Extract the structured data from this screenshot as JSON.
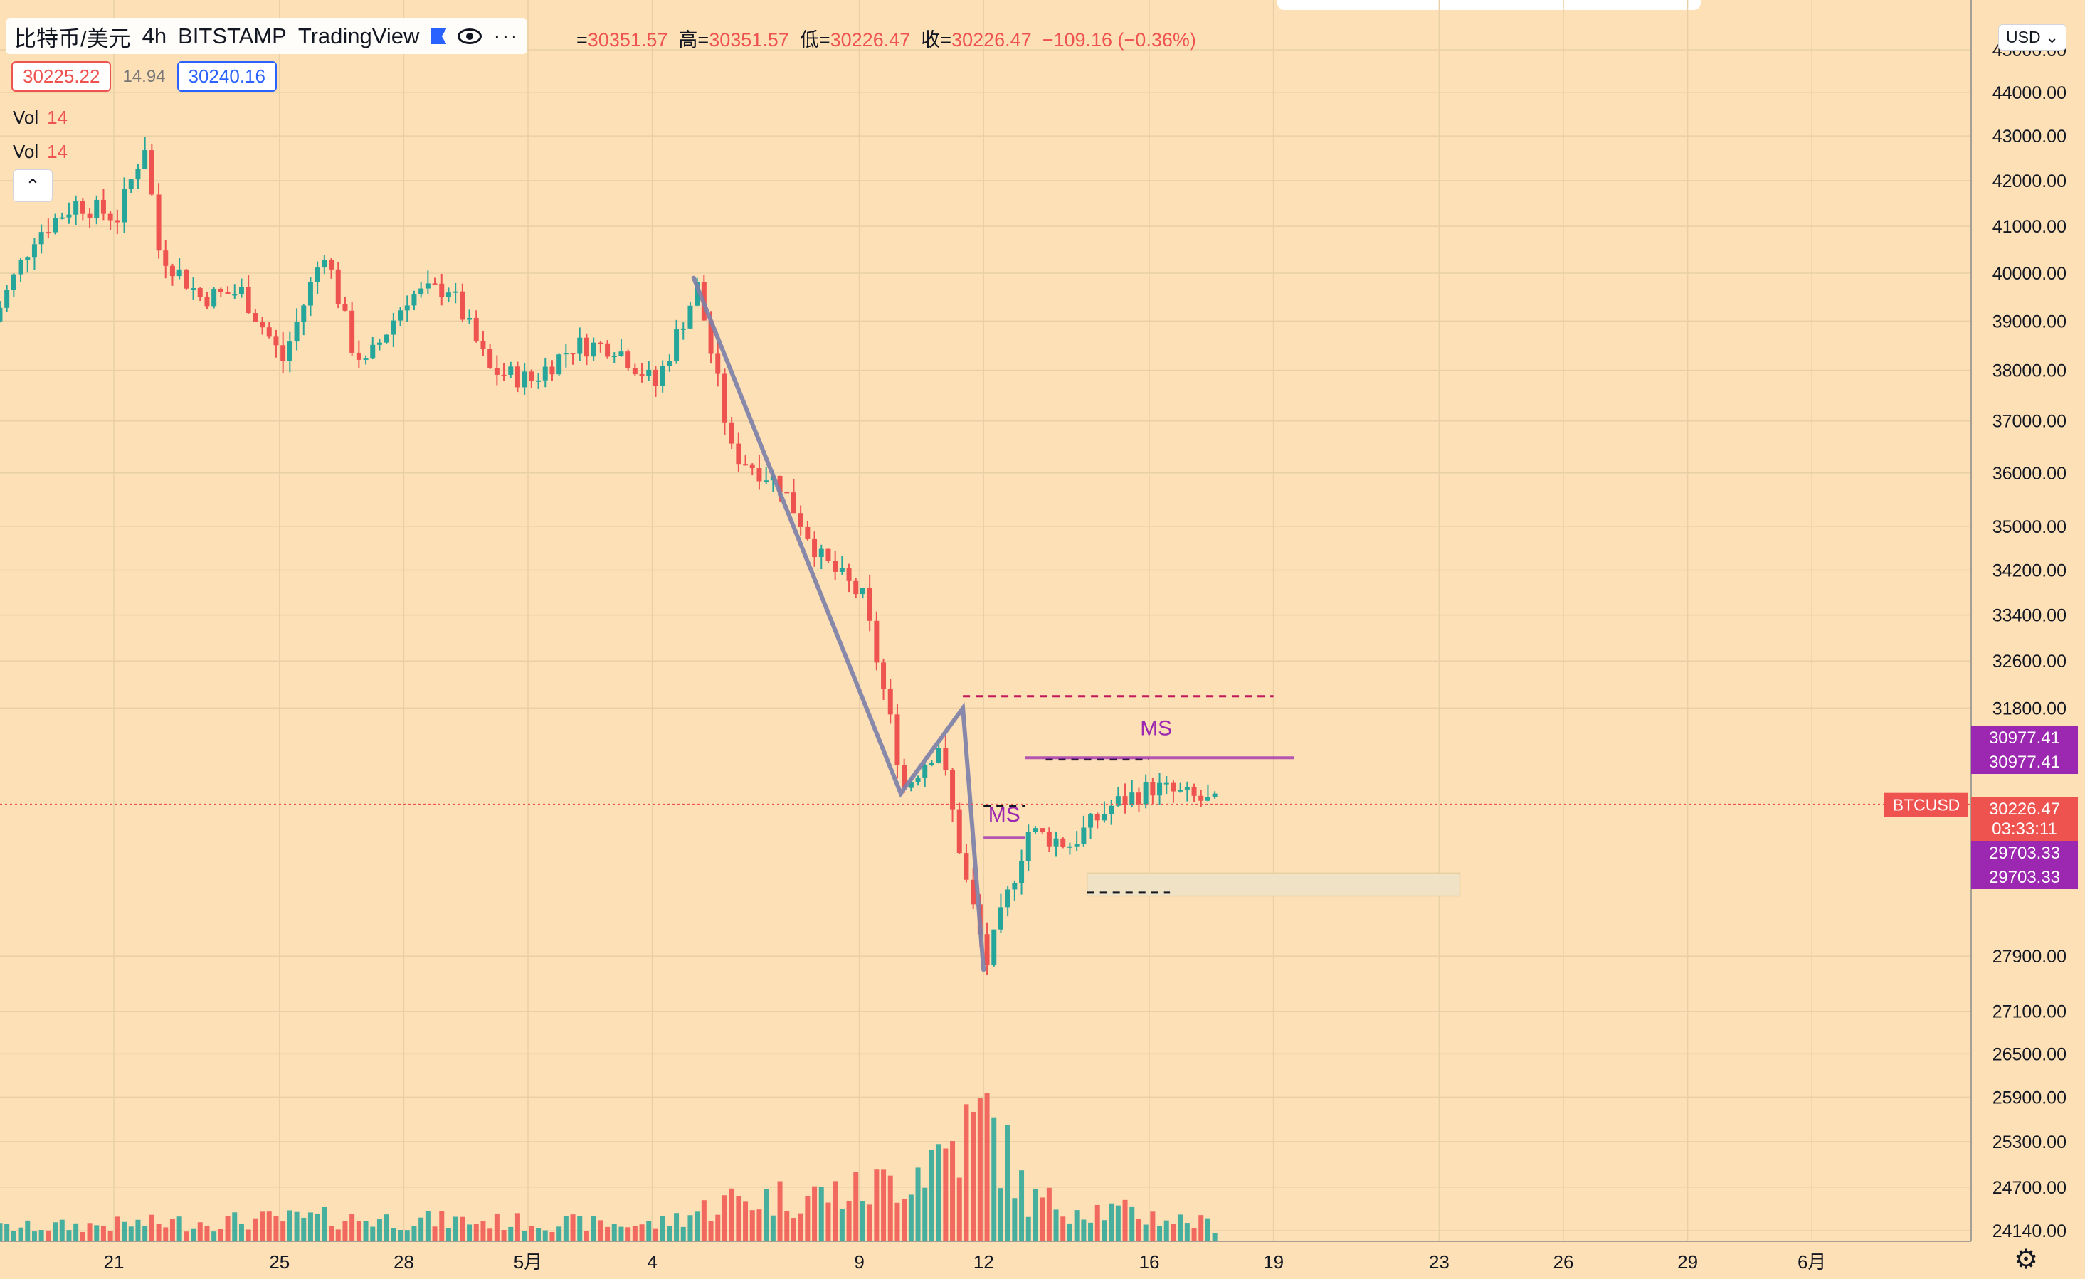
{
  "header": {
    "symbol": "比特币/美元",
    "interval": "4h",
    "exchange": "BITSTAMP",
    "source": "TradingView",
    "icons": [
      "flag-icon",
      "eye-icon",
      "more-icon"
    ]
  },
  "ohlc": {
    "open_label": "=",
    "open": "30351.57",
    "high_label": "高=",
    "high": "30351.57",
    "low_label": "低=",
    "low": "30226.47",
    "close_label": "收=",
    "close": "30226.47",
    "change": "−109.16 (−0.36%)"
  },
  "prices": {
    "bid": "30225.22",
    "spread": "14.94",
    "ask": "30240.16"
  },
  "volume_rows": [
    {
      "label": "Vol",
      "value": "14"
    },
    {
      "label": "Vol",
      "value": "14"
    }
  ],
  "currency_button": "USD",
  "colors": {
    "background": "#fde0b5",
    "up": "#26a69a",
    "down": "#ef5350",
    "accent": "#9c27b0",
    "trend": "#7b7fa8"
  },
  "chart_data": {
    "type": "candlestick",
    "symbol_label": "BTCUSD",
    "y_ticks": [
      "45000.00",
      "44000.00",
      "43000.00",
      "42000.00",
      "41000.00",
      "40000.00",
      "39000.00",
      "38000.00",
      "37000.00",
      "36000.00",
      "35000.00",
      "34200.00",
      "33400.00",
      "32600.00",
      "31800.00",
      "27900.00",
      "27100.00",
      "26500.00",
      "25900.00",
      "25300.00",
      "24700.00",
      "24140.00"
    ],
    "x_ticks": [
      {
        "label": "21",
        "date": "2022-04-21"
      },
      {
        "label": "25",
        "date": "2022-04-25"
      },
      {
        "label": "28",
        "date": "2022-04-28"
      },
      {
        "label": "5月",
        "date": "2022-05-01"
      },
      {
        "label": "4",
        "date": "2022-05-04"
      },
      {
        "label": "9",
        "date": "2022-05-09"
      },
      {
        "label": "12",
        "date": "2022-05-12"
      },
      {
        "label": "16",
        "date": "2022-05-16"
      },
      {
        "label": "19",
        "date": "2022-05-19"
      },
      {
        "label": "23",
        "date": "2022-05-23"
      },
      {
        "label": "26",
        "date": "2022-05-26"
      },
      {
        "label": "29",
        "date": "2022-05-29"
      },
      {
        "label": "6月",
        "date": "2022-06-01"
      }
    ],
    "anchors": [
      {
        "t": "2022-04-18T00:00",
        "p": 39000
      },
      {
        "t": "2022-04-19T00:00",
        "p": 40800
      },
      {
        "t": "2022-04-20T00:00",
        "p": 41500
      },
      {
        "t": "2022-04-21T00:00",
        "p": 41200
      },
      {
        "t": "2022-04-21T16:00",
        "p": 42800
      },
      {
        "t": "2022-04-22T00:00",
        "p": 40500
      },
      {
        "t": "2022-04-23T00:00",
        "p": 39500
      },
      {
        "t": "2022-04-24T00:00",
        "p": 39600
      },
      {
        "t": "2022-04-25T00:00",
        "p": 38200
      },
      {
        "t": "2022-04-26T00:00",
        "p": 40500
      },
      {
        "t": "2022-04-26T16:00",
        "p": 38500
      },
      {
        "t": "2022-04-27T00:00",
        "p": 38100
      },
      {
        "t": "2022-04-28T00:00",
        "p": 39500
      },
      {
        "t": "2022-04-29T00:00",
        "p": 39700
      },
      {
        "t": "2022-04-30T00:00",
        "p": 38000
      },
      {
        "t": "2022-05-01T00:00",
        "p": 37800
      },
      {
        "t": "2022-05-02T00:00",
        "p": 38500
      },
      {
        "t": "2022-05-03T00:00",
        "p": 38500
      },
      {
        "t": "2022-05-04T00:00",
        "p": 37700
      },
      {
        "t": "2022-05-05T00:00",
        "p": 39700
      },
      {
        "t": "2022-05-05T20:00",
        "p": 36400
      },
      {
        "t": "2022-05-07T00:00",
        "p": 35800
      },
      {
        "t": "2022-05-08T00:00",
        "p": 34400
      },
      {
        "t": "2022-05-09T00:00",
        "p": 33700
      },
      {
        "t": "2022-05-10T00:00",
        "p": 30500
      },
      {
        "t": "2022-05-10T20:00",
        "p": 31200
      },
      {
        "t": "2022-05-11T12:00",
        "p": 29000
      },
      {
        "t": "2022-05-12T00:00",
        "p": 27800
      },
      {
        "t": "2022-05-13T00:00",
        "p": 29800
      },
      {
        "t": "2022-05-14T00:00",
        "p": 29600
      },
      {
        "t": "2022-05-15T00:00",
        "p": 30200
      },
      {
        "t": "2022-05-16T00:00",
        "p": 30500
      },
      {
        "t": "2022-05-17T12:00",
        "p": 30226
      }
    ],
    "volume_anchors": [
      {
        "t": "2022-04-18T00:00",
        "v": 8
      },
      {
        "t": "2022-04-26T00:00",
        "v": 14
      },
      {
        "t": "2022-05-04T00:00",
        "v": 10
      },
      {
        "t": "2022-05-05T20:00",
        "v": 25
      },
      {
        "t": "2022-05-09T00:00",
        "v": 30
      },
      {
        "t": "2022-05-10T00:00",
        "v": 40
      },
      {
        "t": "2022-05-11T12:00",
        "v": 65
      },
      {
        "t": "2022-05-12T00:00",
        "v": 75
      },
      {
        "t": "2022-05-13T00:00",
        "v": 25
      },
      {
        "t": "2022-05-17T12:00",
        "v": 10
      }
    ],
    "trendline": [
      {
        "t": "2022-05-05T00:00",
        "p": 39900
      },
      {
        "t": "2022-05-10T00:00",
        "p": 30400
      },
      {
        "t": "2022-05-11T12:00",
        "p": 31800
      },
      {
        "t": "2022-05-12T00:00",
        "p": 27700
      }
    ],
    "dashed_levels": [
      {
        "p": 32000,
        "t1": "2022-05-11T12:00",
        "t2": "2022-05-19T00:00",
        "color": "#c2185b"
      },
      {
        "p": 30950,
        "t1": "2022-05-13T12:00",
        "t2": "2022-05-16T00:00",
        "color": "#131722"
      },
      {
        "p": 30200,
        "t1": "2022-05-12T00:00",
        "t2": "2022-05-13T00:00",
        "color": "#131722"
      },
      {
        "p": 28850,
        "t1": "2022-05-14T12:00",
        "t2": "2022-05-16T12:00",
        "color": "#131722"
      }
    ],
    "structure_lines": [
      {
        "p": 30977.41,
        "t1": "2022-05-13T00:00",
        "t2": "2022-05-19T12:00"
      },
      {
        "p": 29703.33,
        "t1": "2022-05-12T00:00",
        "t2": "2022-05-13T00:00"
      }
    ],
    "zone": {
      "p1": 28800,
      "p2": 29150,
      "t1": "2022-05-14T12:00",
      "t2": "2022-05-23T12:00"
    },
    "annotations": [
      {
        "text": "MS",
        "t": "2022-05-12T12:00",
        "p": 29950
      },
      {
        "text": "MS",
        "t": "2022-05-16T04:00",
        "p": 31350
      }
    ],
    "price_labels": [
      {
        "text": "30977.41",
        "color": "#9c27b0"
      },
      {
        "text": "30977.41",
        "color": "#9c27b0"
      },
      {
        "text": "30226.47",
        "color": "#ef5350"
      },
      {
        "text": "03:33:11",
        "color": "#ef5350"
      },
      {
        "text": "29703.33",
        "color": "#9c27b0"
      },
      {
        "text": "29703.33",
        "color": "#9c27b0"
      }
    ],
    "current_price": 30226.47,
    "grid": true
  }
}
